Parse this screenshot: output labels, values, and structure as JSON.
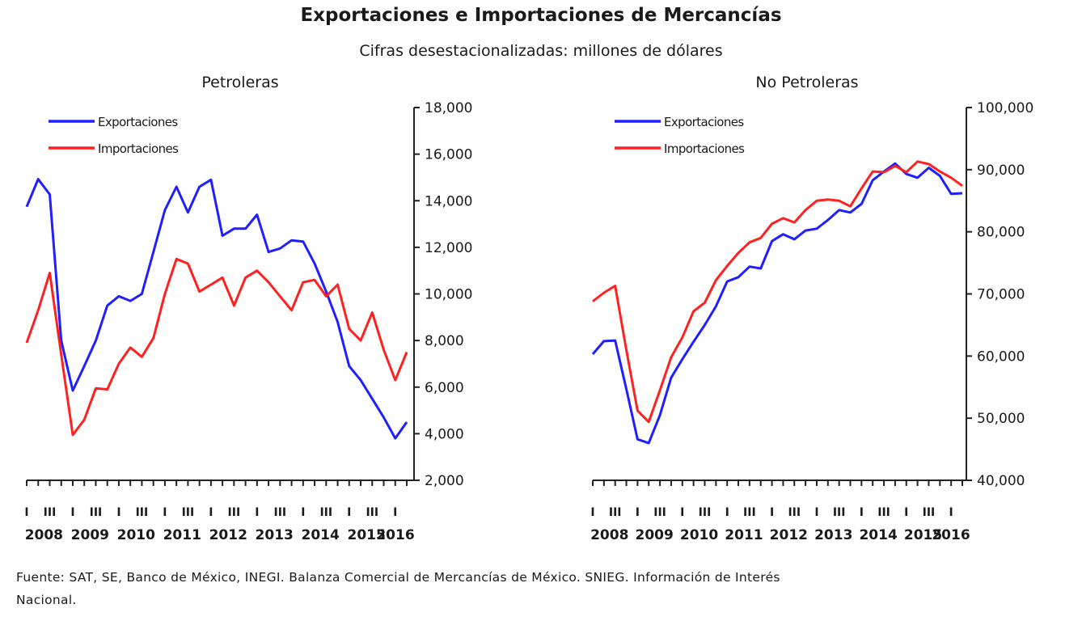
{
  "header": {
    "title": "Exportaciones e Importaciones de Mercancías",
    "subtitle": "Cifras desestacionalizadas: millones de dólares"
  },
  "footnote": {
    "line1": "Fuente: SAT, SE, Banco de México, INEGI. Balanza Comercial de Mercancías de México. SNIEG. Información de Interés",
    "line2": "Nacional."
  },
  "colors": {
    "exportaciones": "#1f1fff",
    "importaciones": "#ff2020"
  },
  "chart_data": [
    {
      "type": "line",
      "title": "Petroleras",
      "x_quarter_labels": [
        "I",
        "III",
        "I",
        "III",
        "I",
        "III",
        "I",
        "III",
        "I",
        "III",
        "I",
        "III",
        "I",
        "III",
        "I",
        "III",
        "I"
      ],
      "x_year_labels": [
        "2008",
        "2009",
        "2010",
        "2011",
        "2012",
        "2013",
        "2014",
        "2015",
        "2016"
      ],
      "frequency": "quarterly, 2008-I to 2016-II",
      "ylim": [
        2000,
        18000
      ],
      "yticks": [
        "2,000",
        "4,000",
        "6,000",
        "8,000",
        "10,000",
        "12,000",
        "14,000",
        "16,000",
        "18,000"
      ],
      "y_axis_side": "right",
      "legend_position": "top-left",
      "grid": false,
      "series": [
        {
          "name": "Exportaciones",
          "color": "#1f1fff",
          "values": [
            13740,
            14930,
            14270,
            8000,
            5850,
            6900,
            8000,
            9500,
            9900,
            9700,
            10000,
            11800,
            13600,
            14600,
            13500,
            14600,
            14900,
            12500,
            12800,
            12800,
            13400,
            11800,
            11950,
            12300,
            12250,
            11300,
            10100,
            8800,
            6900,
            6300,
            5500,
            4700,
            3800,
            4500
          ]
        },
        {
          "name": "Importaciones",
          "color": "#ff2020",
          "values": [
            7900,
            9300,
            10900,
            7400,
            3950,
            4600,
            5950,
            5900,
            7000,
            7700,
            7300,
            8100,
            10000,
            11500,
            11300,
            10100,
            10400,
            10700,
            9500,
            10700,
            11000,
            10500,
            9900,
            9300,
            10500,
            10600,
            9900,
            10400,
            8500,
            8000,
            9200,
            7600,
            6300,
            7500
          ]
        }
      ]
    },
    {
      "type": "line",
      "title": "No Petroleras",
      "x_quarter_labels": [
        "I",
        "III",
        "I",
        "III",
        "I",
        "III",
        "I",
        "III",
        "I",
        "III",
        "I",
        "III",
        "I",
        "III",
        "I",
        "III",
        "I"
      ],
      "x_year_labels": [
        "2008",
        "2009",
        "2010",
        "2011",
        "2012",
        "2013",
        "2014",
        "2015",
        "2016"
      ],
      "frequency": "quarterly, 2008-I to 2016-II",
      "ylim": [
        40000,
        100000
      ],
      "yticks": [
        "40,000",
        "50,000",
        "60,000",
        "70,000",
        "80,000",
        "90,000",
        "100,000"
      ],
      "y_axis_side": "right",
      "legend_position": "top-left",
      "grid": false,
      "series": [
        {
          "name": "Exportaciones",
          "color": "#1f1fff",
          "values": [
            60300,
            62400,
            62500,
            54700,
            46600,
            46000,
            50500,
            56500,
            59500,
            62300,
            65000,
            68000,
            72000,
            72700,
            74400,
            74100,
            78500,
            79600,
            78800,
            80200,
            80500,
            81900,
            83500,
            83100,
            84500,
            88300,
            89700,
            91000,
            89300,
            88700,
            90300,
            89000,
            86100,
            86200
          ]
        },
        {
          "name": "Importaciones",
          "color": "#ff2020",
          "values": [
            68800,
            70200,
            71300,
            61000,
            51200,
            49400,
            54500,
            59800,
            63000,
            67200,
            68600,
            72200,
            74500,
            76600,
            78300,
            79000,
            81300,
            82200,
            81500,
            83500,
            85000,
            85200,
            85000,
            84100,
            87000,
            89700,
            89600,
            90600,
            89600,
            91300,
            90900,
            89700,
            88700,
            87400
          ]
        }
      ]
    }
  ]
}
